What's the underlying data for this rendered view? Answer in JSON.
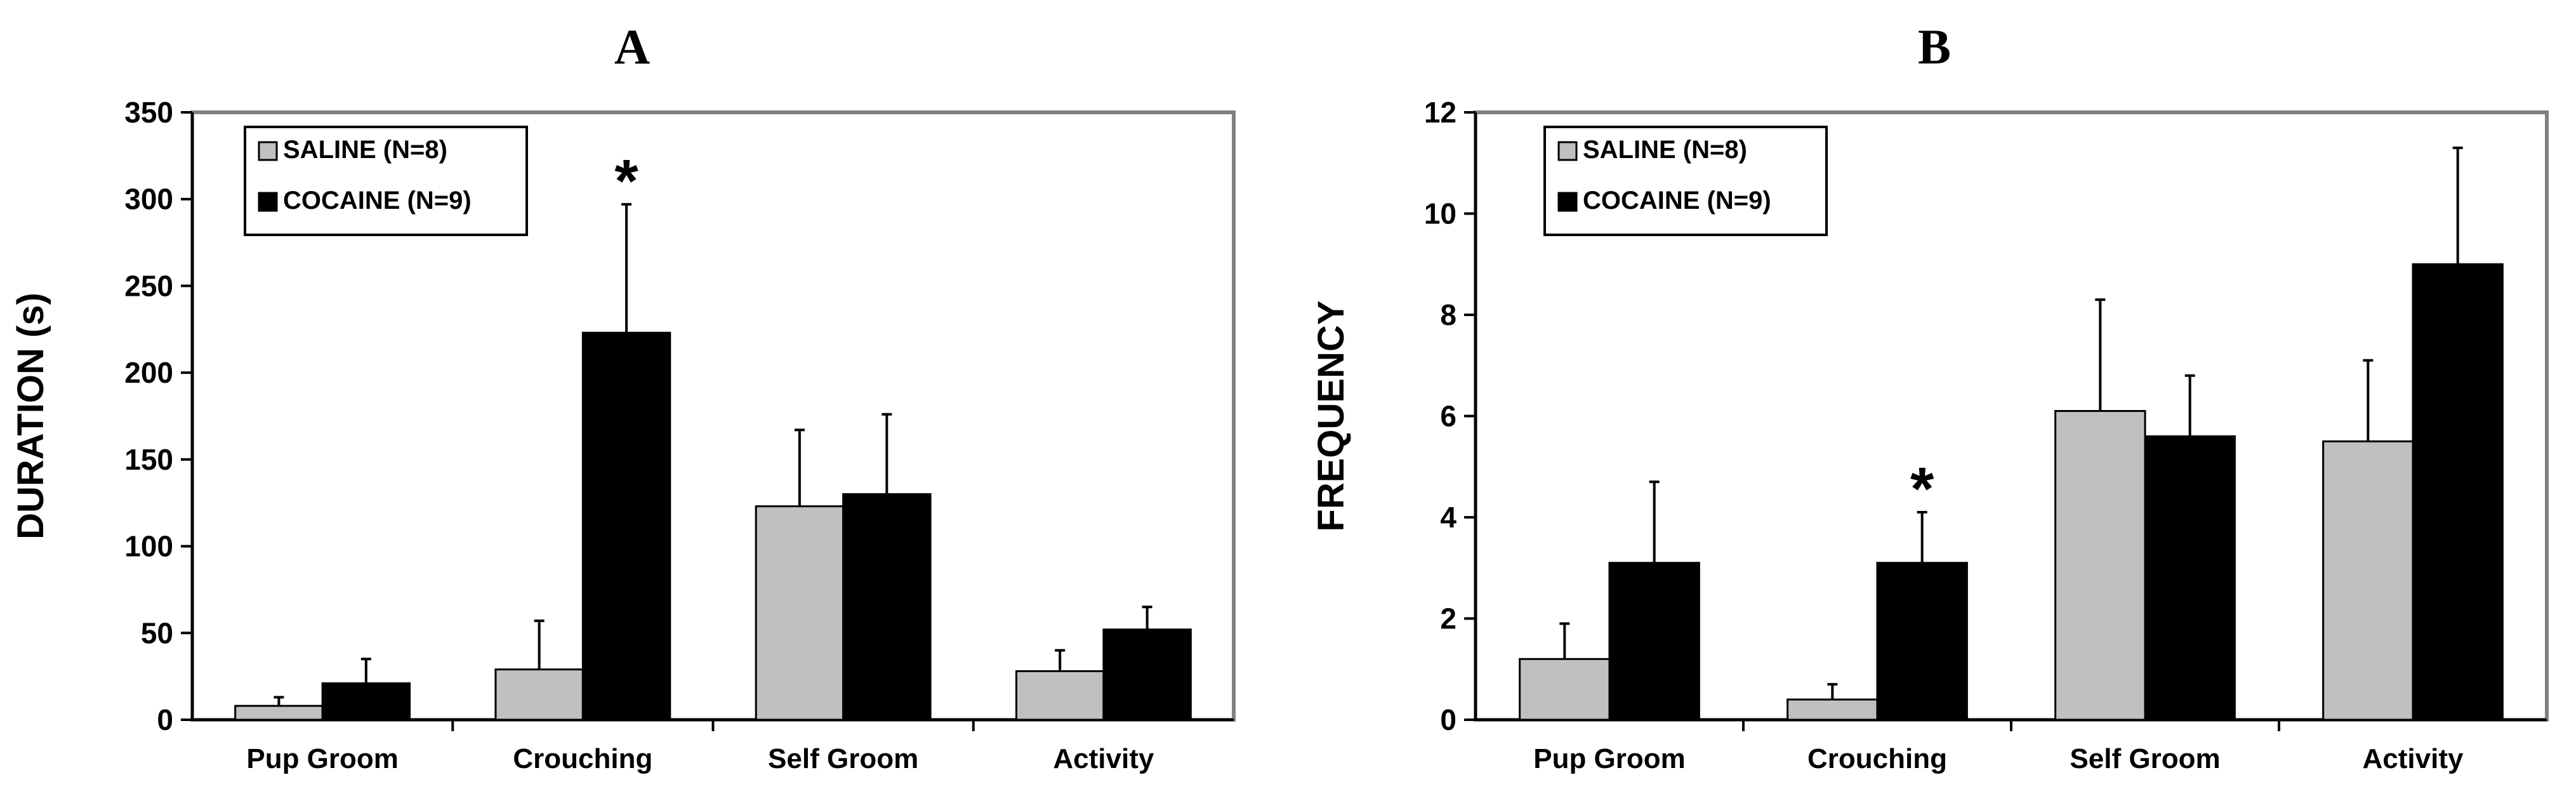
{
  "chart_data": [
    {
      "panel_label": "A",
      "type": "bar",
      "ylabel": "DURATION (s)",
      "xlabel": "",
      "ylim": [
        0,
        350
      ],
      "yticks": [
        "0",
        "50",
        "100",
        "150",
        "200",
        "250",
        "300",
        "350"
      ],
      "ytick_values": [
        0,
        50,
        100,
        150,
        200,
        250,
        300,
        350
      ],
      "grid": false,
      "legend_position": "top-left",
      "categories": [
        "Pup Groom",
        "Crouching",
        "Self Groom",
        "Activity"
      ],
      "series": [
        {
          "name": "SALINE (N=8)",
          "color": "#c0c0c0",
          "values": [
            8,
            29,
            123,
            28
          ],
          "error": [
            5,
            28,
            44,
            12
          ]
        },
        {
          "name": "COCAINE (N=9)",
          "color": "#000000",
          "values": [
            21,
            223,
            130,
            52
          ],
          "error": [
            14,
            74,
            46,
            13
          ]
        }
      ],
      "annotations": [
        {
          "text": "*",
          "category": "Crouching",
          "series": "COCAINE (N=9)"
        }
      ]
    },
    {
      "panel_label": "B",
      "type": "bar",
      "ylabel": "FREQUENCY",
      "xlabel": "",
      "ylim": [
        0,
        12
      ],
      "yticks": [
        "0",
        "2",
        "4",
        "6",
        "8",
        "10",
        "12"
      ],
      "ytick_values": [
        0,
        2,
        4,
        6,
        8,
        10,
        12
      ],
      "grid": false,
      "legend_position": "top-left",
      "categories": [
        "Pup Groom",
        "Crouching",
        "Self Groom",
        "Activity"
      ],
      "series": [
        {
          "name": "SALINE (N=8)",
          "color": "#c0c0c0",
          "values": [
            1.2,
            0.4,
            6.1,
            5.5
          ],
          "error": [
            0.7,
            0.3,
            2.2,
            1.6
          ]
        },
        {
          "name": "COCAINE (N=9)",
          "color": "#000000",
          "values": [
            3.1,
            3.1,
            5.6,
            9.0
          ],
          "error": [
            1.6,
            1.0,
            1.2,
            2.3
          ]
        }
      ],
      "annotations": [
        {
          "text": "*",
          "category": "Crouching",
          "series": "COCAINE (N=9)"
        }
      ]
    }
  ]
}
